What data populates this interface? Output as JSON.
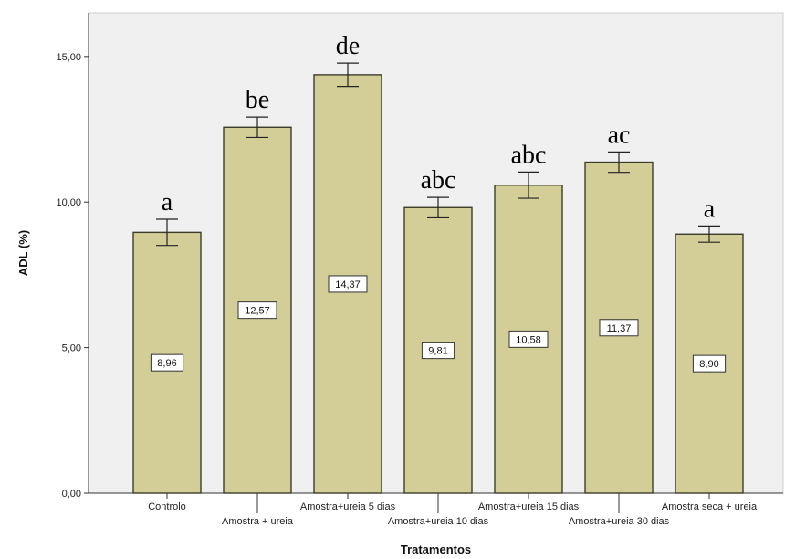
{
  "chart_data": {
    "type": "bar",
    "xlabel": "Tratamentos",
    "ylabel": "ADL (%)",
    "ylim": [
      0,
      16.5
    ],
    "yticks": [
      "0,00",
      "5,00",
      "10,00",
      "15,00"
    ],
    "ytick_values": [
      0,
      5,
      10,
      15
    ],
    "grid": false,
    "categories": [
      "Controlo",
      "Amostra + ureia",
      "Amostra+ureia 5 dias",
      "Amostra+ureia 10 dias",
      "Amostra+ureia 15 dias",
      "Amostra+ureia 30 dias",
      "Amostra seca + ureia"
    ],
    "values": [
      8.96,
      12.57,
      14.37,
      9.81,
      10.58,
      11.37,
      8.9
    ],
    "value_labels": [
      "8,96",
      "12,57",
      "14,37",
      "9,81",
      "10,58",
      "11,37",
      "8,90"
    ],
    "error": [
      0.45,
      0.35,
      0.4,
      0.35,
      0.45,
      0.35,
      0.28
    ],
    "significance_letters": [
      "a",
      "be",
      "de",
      "abc",
      "abc",
      "ac",
      "a"
    ],
    "colors": {
      "plot_bg": "#f0f0f0",
      "bar_fill": "#d3ce97",
      "bar_stroke": "#3c3c2a",
      "axis": "#333333"
    }
  }
}
